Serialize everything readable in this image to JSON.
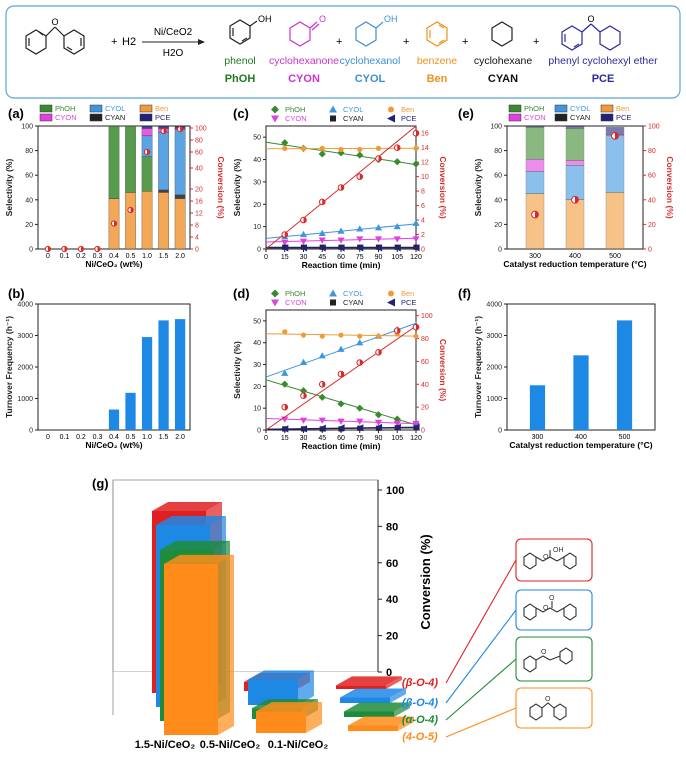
{
  "scheme": {
    "reactant": "diphenyl ether",
    "plus": "+",
    "reagent": "H2",
    "catalyst": "Ni/CeO2",
    "solvent": "H2O",
    "products": [
      {
        "name": "phenol",
        "abbr": "PhOH",
        "color": "#1f7a1f"
      },
      {
        "name": "cyclohexanone",
        "abbr": "CYON",
        "color": "#cc33cc"
      },
      {
        "name": "cyclohexanol",
        "abbr": "CYOL",
        "color": "#3a8fd9"
      },
      {
        "name": "benzene",
        "abbr": "Ben",
        "color": "#f0901e"
      },
      {
        "name": "cyclohexane",
        "abbr": "CYAN",
        "color": "#111111"
      },
      {
        "name": "phenyl cyclohexyl ether",
        "abbr": "PCE",
        "color": "#2a2a9a"
      }
    ]
  },
  "colors": {
    "PhOH": "#3b8a2f",
    "CYON": "#e040e0",
    "CYOL": "#3f95e0",
    "Ben": "#f29a3a",
    "CYAN": "#222222",
    "PCE": "#22227a",
    "conv": "#d82a2a",
    "bar": "#1e88e5",
    "g_red": "#e02020",
    "g_blue": "#1e88e5",
    "g_green": "#1e8c3a",
    "g_orange": "#ff8c1a"
  },
  "panel_labels": {
    "a": "(a)",
    "b": "(b)",
    "c": "(c)",
    "d": "(d)",
    "e": "(e)",
    "f": "(f)",
    "g": "(g)"
  },
  "chart_data": [
    {
      "id": "a",
      "type": "bar",
      "xlabel": "Ni/CeO₂ (wt%)",
      "ylabel": "Selectivity (%)",
      "y2label": "Conversion (%)",
      "categories": [
        "0",
        "0.1",
        "0.2",
        "0.3",
        "0.4",
        "0.5",
        "1.0",
        "1.5",
        "2.0"
      ],
      "ylim": [
        0,
        100
      ],
      "yticks": [
        "0",
        "20",
        "40",
        "60",
        "80",
        "100"
      ],
      "y2ticks": [
        "0",
        "4",
        "8",
        "12",
        "16",
        "20",
        "40",
        "60",
        "80",
        "100"
      ],
      "series": [
        {
          "name": "Ben",
          "values": [
            0,
            0,
            0,
            0,
            41,
            46,
            47,
            46,
            41
          ]
        },
        {
          "name": "CYAN",
          "values": [
            0,
            0,
            0,
            0,
            0,
            0,
            0,
            2,
            3
          ]
        },
        {
          "name": "PhOH",
          "values": [
            0,
            0,
            0,
            0,
            59,
            54,
            28,
            0,
            0
          ]
        },
        {
          "name": "CYOL",
          "values": [
            0,
            0,
            0,
            0,
            0,
            0,
            17,
            47,
            53
          ]
        },
        {
          "name": "CYON",
          "values": [
            0,
            0,
            0,
            0,
            0,
            0,
            6,
            3,
            1
          ]
        },
        {
          "name": "PCE",
          "values": [
            0,
            0,
            0,
            0,
            0,
            0,
            2,
            2,
            2
          ]
        }
      ],
      "conversion": [
        0,
        0,
        0,
        0,
        8.5,
        13,
        60,
        95,
        98
      ]
    },
    {
      "id": "b",
      "type": "bar",
      "xlabel": "Ni/CeO₂ (wt%)",
      "ylabel": "Turnover Frequency (h⁻¹)",
      "categories": [
        "0",
        "0.1",
        "0.2",
        "0.3",
        "0.4",
        "0.5",
        "1.0",
        "1.5",
        "2.0"
      ],
      "values": [
        0,
        0,
        0,
        0,
        650,
        1180,
        2950,
        3480,
        3520
      ],
      "ylim": [
        0,
        4000
      ],
      "yticks": [
        "0",
        "1000",
        "2000",
        "3000",
        "4000"
      ]
    },
    {
      "id": "c",
      "type": "scatter",
      "xlabel": "Reaction time (min)",
      "ylabel": "Selectivity (%)",
      "y2label": "Conversion (%)",
      "x": [
        15,
        30,
        45,
        60,
        75,
        90,
        105,
        120
      ],
      "xticks": [
        "0",
        "15",
        "30",
        "45",
        "60",
        "75",
        "90",
        "105",
        "120"
      ],
      "ylim": [
        0,
        55
      ],
      "yticks": [
        "0",
        "10",
        "20",
        "30",
        "40",
        "50"
      ],
      "y2lim": [
        0,
        17
      ],
      "y2ticks": [
        "0",
        "2",
        "4",
        "6",
        "8",
        "10",
        "12",
        "14",
        "16"
      ],
      "series": [
        {
          "name": "PhOH",
          "values": [
            47.5,
            45,
            42.5,
            43,
            42,
            40,
            39,
            38
          ]
        },
        {
          "name": "CYOL",
          "values": [
            5.5,
            6.5,
            7,
            8,
            9,
            9.5,
            10,
            11.5
          ]
        },
        {
          "name": "Ben",
          "values": [
            45,
            45,
            45,
            44.5,
            44.5,
            45,
            45.5,
            45
          ]
        },
        {
          "name": "CYON",
          "values": [
            3,
            3.5,
            4,
            4,
            4.5,
            4.5,
            4.5,
            4.5
          ]
        },
        {
          "name": "CYAN",
          "values": [
            0.8,
            0.8,
            0.8,
            0.8,
            0.8,
            0.8,
            0.8,
            0.8
          ]
        },
        {
          "name": "PCE",
          "values": [
            0.5,
            0.5,
            0.5,
            0.5,
            0.5,
            0.5,
            0.5,
            0.5
          ]
        }
      ],
      "conversion": [
        2,
        4,
        6.5,
        8.5,
        10,
        12.5,
        14,
        16
      ]
    },
    {
      "id": "d",
      "type": "scatter",
      "xlabel": "Reaction time (min)",
      "ylabel": "Selectivity (%)",
      "y2label": "Conversion (%)",
      "x": [
        15,
        30,
        45,
        60,
        75,
        90,
        105,
        120
      ],
      "xticks": [
        "0",
        "15",
        "30",
        "45",
        "60",
        "75",
        "90",
        "105",
        "120"
      ],
      "ylim": [
        0,
        55
      ],
      "yticks": [
        "0",
        "10",
        "20",
        "30",
        "40",
        "50"
      ],
      "y2lim": [
        0,
        105
      ],
      "y2ticks": [
        "0",
        "20",
        "40",
        "60",
        "80",
        "100"
      ],
      "series": [
        {
          "name": "PhOH",
          "values": [
            21,
            18,
            15,
            12,
            10,
            7,
            5,
            3
          ]
        },
        {
          "name": "CYOL",
          "values": [
            26,
            31,
            34,
            37,
            40,
            43,
            46,
            48
          ]
        },
        {
          "name": "Ben",
          "values": [
            45,
            43.5,
            43,
            43.5,
            43,
            43,
            44,
            43
          ]
        },
        {
          "name": "CYON",
          "values": [
            5,
            4.5,
            4.5,
            4,
            4,
            3.5,
            3,
            3
          ]
        },
        {
          "name": "CYAN",
          "values": [
            0.5,
            0.5,
            0.5,
            0.5,
            0.8,
            0.8,
            1,
            1
          ]
        },
        {
          "name": "PCE",
          "values": [
            0.5,
            0.5,
            0.8,
            1,
            1,
            1.2,
            1.2,
            1.2
          ]
        }
      ],
      "conversion": [
        20,
        30,
        40,
        49,
        59,
        68,
        87,
        90
      ]
    },
    {
      "id": "e",
      "type": "bar",
      "xlabel": "Catalyst reduction temperature (°C)",
      "ylabel": "Selectivity (%)",
      "y2label": "Conversion (%)",
      "categories": [
        "300",
        "400",
        "500"
      ],
      "ylim": [
        0,
        100
      ],
      "yticks": [
        "0",
        "20",
        "40",
        "60",
        "80",
        "100"
      ],
      "y2ticks": [
        "0",
        "20",
        "40",
        "60",
        "80",
        "100"
      ],
      "series": [
        {
          "name": "Ben",
          "values": [
            45,
            40,
            46
          ]
        },
        {
          "name": "CYAN",
          "values": [
            0,
            0,
            0
          ]
        },
        {
          "name": "CYOL",
          "values": [
            18,
            28,
            46
          ]
        },
        {
          "name": "CYON",
          "values": [
            10,
            4,
            1
          ]
        },
        {
          "name": "PhOH",
          "values": [
            26,
            26,
            0
          ]
        },
        {
          "name": "PCE",
          "values": [
            1,
            2,
            6
          ]
        }
      ],
      "conversion": [
        28,
        40,
        92
      ]
    },
    {
      "id": "f",
      "type": "bar",
      "xlabel": "Catalyst reduction temperature (°C)",
      "ylabel": "Turnover Frequency (h⁻¹)",
      "categories": [
        "300",
        "400",
        "500"
      ],
      "values": [
        1420,
        2370,
        3480
      ],
      "ylim": [
        0,
        4000
      ],
      "yticks": [
        "0",
        "1000",
        "2000",
        "3000",
        "4000"
      ]
    },
    {
      "id": "g",
      "type": "bar",
      "zlabel": "Conversion (%)",
      "zticks": [
        "0",
        "20",
        "40",
        "60",
        "80",
        "100"
      ],
      "zlim": [
        0,
        100
      ],
      "categories": [
        "1.5-Ni/CeO₂",
        "0.5-Ni/CeO₂",
        "0.1-Ni/CeO₂"
      ],
      "series": [
        {
          "name": "(β-O-4)",
          "values": [
            100,
            5,
            2
          ]
        },
        {
          "name": "(β-O-4)",
          "values": [
            100,
            14,
            3
          ]
        },
        {
          "name": "(α-O-4)",
          "values": [
            94,
            6,
            3
          ]
        },
        {
          "name": "(4-O-5)",
          "values": [
            94,
            12,
            3
          ]
        }
      ]
    }
  ]
}
